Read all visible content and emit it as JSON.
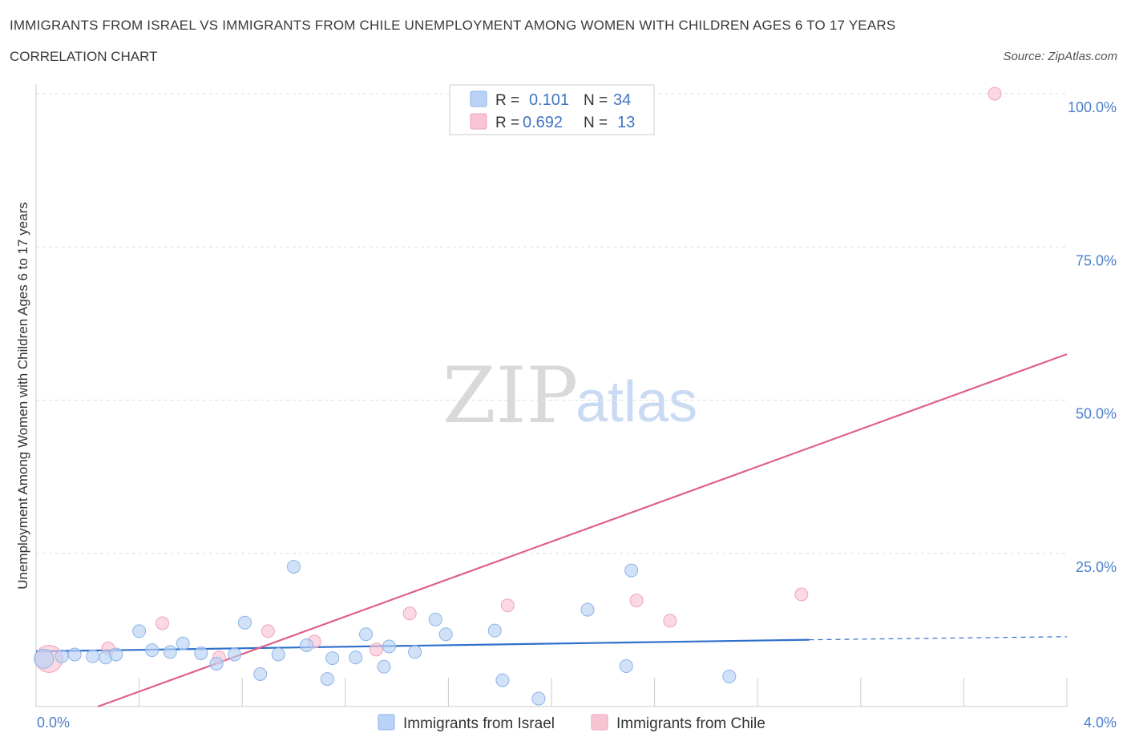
{
  "header": {
    "title": "IMMIGRANTS FROM ISRAEL VS IMMIGRANTS FROM CHILE UNEMPLOYMENT AMONG WOMEN WITH CHILDREN AGES 6 TO 17 YEARS",
    "subtitle": "CORRELATION CHART",
    "source": "Source: ZipAtlas.com"
  },
  "watermark": {
    "zip": "ZIP",
    "atlas": "atlas"
  },
  "legend": {
    "israel": {
      "r_label": "R =",
      "r_value": "0.101",
      "n_label": "N =",
      "n_value": "34"
    },
    "chile": {
      "r_label": "R =",
      "r_value": "0.692",
      "n_label": "N =",
      "n_value": "13"
    }
  },
  "colors": {
    "israel_fill": "#b9d2f5",
    "israel_stroke": "#8db3e8",
    "israel_line": "#2f6fcc",
    "chile_fill": "#f8c4d3",
    "chile_stroke": "#f0a2b9",
    "chile_line": "#e0608e",
    "grid": "#dddddd",
    "axis_text": "#4a7fcc"
  },
  "chart_data": {
    "type": "scatter",
    "title": "IMMIGRANTS FROM ISRAEL VS IMMIGRANTS FROM CHILE UNEMPLOYMENT AMONG WOMEN WITH CHILDREN AGES 6 TO 17 YEARS",
    "xlabel": "",
    "ylabel": "Unemployment Among Women with Children Ages 6 to 17 years",
    "xlim": [
      0,
      4.0
    ],
    "ylim": [
      0,
      100
    ],
    "x_tick_labels": [
      "0.0%",
      "4.0%"
    ],
    "y_ticks": [
      25,
      50,
      75,
      100
    ],
    "y_tick_labels": [
      "25.0%",
      "50.0%",
      "75.0%",
      "100.0%"
    ],
    "grid": true,
    "series": [
      {
        "name": "Immigrants from Israel",
        "r": 0.101,
        "n": 34,
        "points": [
          [
            0.03,
            7.8
          ],
          [
            0.1,
            8.2
          ],
          [
            0.15,
            8.5
          ],
          [
            0.22,
            8.2
          ],
          [
            0.27,
            8.0
          ],
          [
            0.31,
            8.5
          ],
          [
            0.4,
            12.3
          ],
          [
            0.45,
            9.2
          ],
          [
            0.52,
            8.9
          ],
          [
            0.57,
            10.3
          ],
          [
            0.64,
            8.7
          ],
          [
            0.7,
            7.0
          ],
          [
            0.77,
            8.5
          ],
          [
            0.81,
            13.7
          ],
          [
            0.87,
            5.3
          ],
          [
            0.94,
            8.5
          ],
          [
            1.0,
            22.8
          ],
          [
            1.05,
            10.0
          ],
          [
            1.13,
            4.5
          ],
          [
            1.15,
            7.9
          ],
          [
            1.24,
            8.0
          ],
          [
            1.28,
            11.8
          ],
          [
            1.35,
            6.5
          ],
          [
            1.37,
            9.8
          ],
          [
            1.47,
            8.9
          ],
          [
            1.55,
            14.2
          ],
          [
            1.59,
            11.8
          ],
          [
            1.78,
            12.4
          ],
          [
            1.81,
            4.3
          ],
          [
            1.95,
            1.3
          ],
          [
            2.14,
            15.8
          ],
          [
            2.29,
            6.6
          ],
          [
            2.31,
            22.2
          ],
          [
            2.69,
            4.9
          ]
        ],
        "trend": {
          "x_solid": [
            0.0,
            3.0
          ],
          "x_dashed": [
            3.0,
            4.0
          ],
          "y_at_0": 9.0,
          "y_at_3": 10.9,
          "y_at_4": 11.4
        }
      },
      {
        "name": "Immigrants from Chile",
        "r": 0.692,
        "n": 13,
        "points": [
          [
            0.05,
            7.8
          ],
          [
            0.28,
            9.5
          ],
          [
            0.49,
            13.6
          ],
          [
            0.71,
            8.0
          ],
          [
            0.9,
            12.3
          ],
          [
            1.08,
            10.6
          ],
          [
            1.32,
            9.3
          ],
          [
            1.45,
            15.2
          ],
          [
            1.83,
            16.5
          ],
          [
            2.33,
            17.3
          ],
          [
            2.46,
            14.0
          ],
          [
            2.97,
            18.3
          ],
          [
            3.72,
            100.0
          ]
        ],
        "trend": {
          "x": [
            0.24,
            4.0
          ],
          "y": [
            0.0,
            57.5
          ]
        }
      }
    ]
  },
  "bottom_legend": {
    "israel": "Immigrants from Israel",
    "chile": "Immigrants from Chile"
  }
}
